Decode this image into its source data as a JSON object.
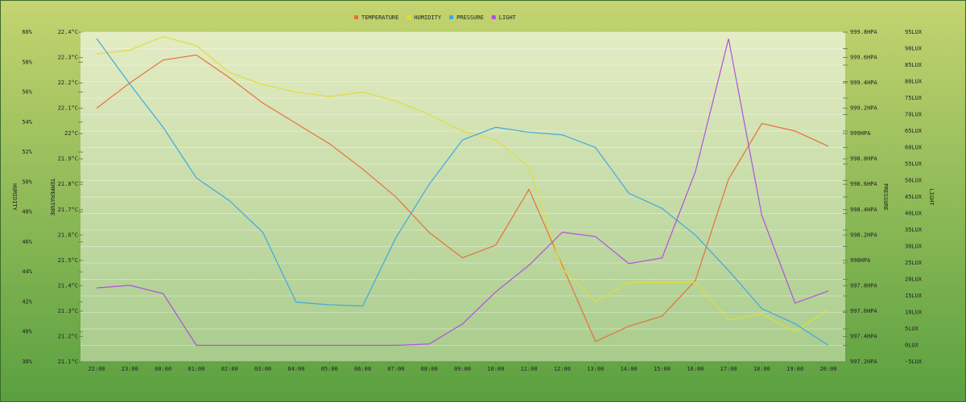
{
  "chart_data": {
    "type": "line",
    "categories": [
      "22:00",
      "23:00",
      "00:00",
      "01:00",
      "02:00",
      "03:00",
      "04:00",
      "05:00",
      "06:00",
      "07:00",
      "08:00",
      "09:00",
      "10:00",
      "11:00",
      "12:00",
      "13:00",
      "14:00",
      "15:00",
      "16:00",
      "17:00",
      "18:00",
      "19:00",
      "20:00"
    ],
    "axes": [
      {
        "label": "HUMIDITY",
        "ylim": [
          38,
          60
        ],
        "yticks": [
          {
            "value": 38,
            "label": "38%"
          },
          {
            "value": 40,
            "label": "40%"
          },
          {
            "value": 42,
            "label": "42%"
          },
          {
            "value": 44,
            "label": "44%"
          },
          {
            "value": 46,
            "label": "46%"
          },
          {
            "value": 48,
            "label": "48%"
          },
          {
            "value": 50,
            "label": "50%"
          },
          {
            "value": 52,
            "label": "52%"
          },
          {
            "value": 54,
            "label": "54%"
          },
          {
            "value": 56,
            "label": "56%"
          },
          {
            "value": 58,
            "label": "58%"
          },
          {
            "value": 60,
            "label": "60%"
          }
        ]
      },
      {
        "label": "TEMPERATURE",
        "ylim": [
          21.1,
          22.4
        ],
        "yticks": [
          {
            "value": 21.1,
            "label": "21.1°C"
          },
          {
            "value": 21.2,
            "label": "21.2°C"
          },
          {
            "value": 21.3,
            "label": "21.3°C"
          },
          {
            "value": 21.4,
            "label": "21.4°C"
          },
          {
            "value": 21.5,
            "label": "21.5°C"
          },
          {
            "value": 21.6,
            "label": "21.6°C"
          },
          {
            "value": 21.7,
            "label": "21.7°C"
          },
          {
            "value": 21.8,
            "label": "21.8°C"
          },
          {
            "value": 21.9,
            "label": "21.9°C"
          },
          {
            "value": 22.0,
            "label": "22°C"
          },
          {
            "value": 22.1,
            "label": "22.1°C"
          },
          {
            "value": 22.2,
            "label": "22.2°C"
          },
          {
            "value": 22.3,
            "label": "22.3°C"
          },
          {
            "value": 22.4,
            "label": "22.4°C"
          }
        ]
      },
      {
        "label": "PRESSURE",
        "ylim": [
          997.2,
          999.8
        ],
        "yticks": [
          {
            "value": 997.2,
            "label": "997.2HPA"
          },
          {
            "value": 997.4,
            "label": "997.4HPA"
          },
          {
            "value": 997.6,
            "label": "997.6HPA"
          },
          {
            "value": 997.8,
            "label": "997.8HPA"
          },
          {
            "value": 998.0,
            "label": "998HPA"
          },
          {
            "value": 998.2,
            "label": "998.2HPA"
          },
          {
            "value": 998.4,
            "label": "998.4HPA"
          },
          {
            "value": 998.6,
            "label": "998.6HPA"
          },
          {
            "value": 998.8,
            "label": "998.8HPA"
          },
          {
            "value": 999.0,
            "label": "999HPA"
          },
          {
            "value": 999.2,
            "label": "999.2HPA"
          },
          {
            "value": 999.4,
            "label": "999.4HPA"
          },
          {
            "value": 999.6,
            "label": "999.6HPA"
          },
          {
            "value": 999.8,
            "label": "999.8HPA"
          }
        ]
      },
      {
        "label": "LIGHT",
        "ylim": [
          -5,
          95
        ],
        "grid": true,
        "yticks": [
          {
            "value": -5,
            "label": "-5LUX"
          },
          {
            "value": 0,
            "label": "0LUX"
          },
          {
            "value": 5,
            "label": "5LUX"
          },
          {
            "value": 10,
            "label": "10LUX"
          },
          {
            "value": 15,
            "label": "15LUX"
          },
          {
            "value": 20,
            "label": "20LUX"
          },
          {
            "value": 25,
            "label": "25LUX"
          },
          {
            "value": 30,
            "label": "30LUX"
          },
          {
            "value": 35,
            "label": "35LUX"
          },
          {
            "value": 40,
            "label": "40LUX"
          },
          {
            "value": 45,
            "label": "45LUX"
          },
          {
            "value": 50,
            "label": "50LUX"
          },
          {
            "value": 55,
            "label": "55LUX"
          },
          {
            "value": 60,
            "label": "60LUX"
          },
          {
            "value": 65,
            "label": "65LUX"
          },
          {
            "value": 70,
            "label": "70LUX"
          },
          {
            "value": 75,
            "label": "75LUX"
          },
          {
            "value": 80,
            "label": "80LUX"
          },
          {
            "value": 85,
            "label": "85LUX"
          },
          {
            "value": 90,
            "label": "90LUX"
          },
          {
            "value": 95,
            "label": "95LUX"
          }
        ]
      }
    ],
    "series": [
      {
        "name": "TEMPERATURE",
        "color": "#e8703a",
        "axis": 1,
        "values": [
          22.1,
          22.2,
          22.29,
          22.31,
          22.22,
          22.12,
          22.04,
          21.96,
          21.86,
          21.75,
          21.61,
          21.51,
          21.56,
          21.78,
          21.48,
          21.18,
          21.24,
          21.28,
          21.42,
          21.82,
          22.04,
          22.01,
          21.95
        ]
      },
      {
        "name": "HUMIDITY",
        "color": "#dede3c",
        "axis": 0,
        "values": [
          58.55,
          58.8,
          59.7,
          59.1,
          57.3,
          56.5,
          56.0,
          55.7,
          56.0,
          55.4,
          54.5,
          53.4,
          52.8,
          51.0,
          44.2,
          42.0,
          43.3,
          43.3,
          43.3,
          40.8,
          41.2,
          40.0,
          41.5
        ]
      },
      {
        "name": "PRESSURE",
        "color": "#40a8e0",
        "axis": 2,
        "values": [
          999.75,
          999.39,
          999.05,
          998.65,
          998.47,
          998.22,
          997.67,
          997.65,
          997.64,
          998.18,
          998.6,
          998.95,
          999.05,
          999.01,
          998.99,
          998.89,
          998.53,
          998.41,
          998.2,
          997.92,
          997.62,
          997.5,
          997.33
        ]
      },
      {
        "name": "LIGHT",
        "color": "#b050e0",
        "axis": 3,
        "values": [
          17.4,
          18.2,
          15.7,
          0,
          0,
          0,
          0,
          0,
          0,
          0,
          0.4,
          6.5,
          16.2,
          24.3,
          34.3,
          33,
          24.8,
          26.5,
          52.6,
          93,
          39.4,
          12.8,
          16.5
        ]
      }
    ]
  }
}
